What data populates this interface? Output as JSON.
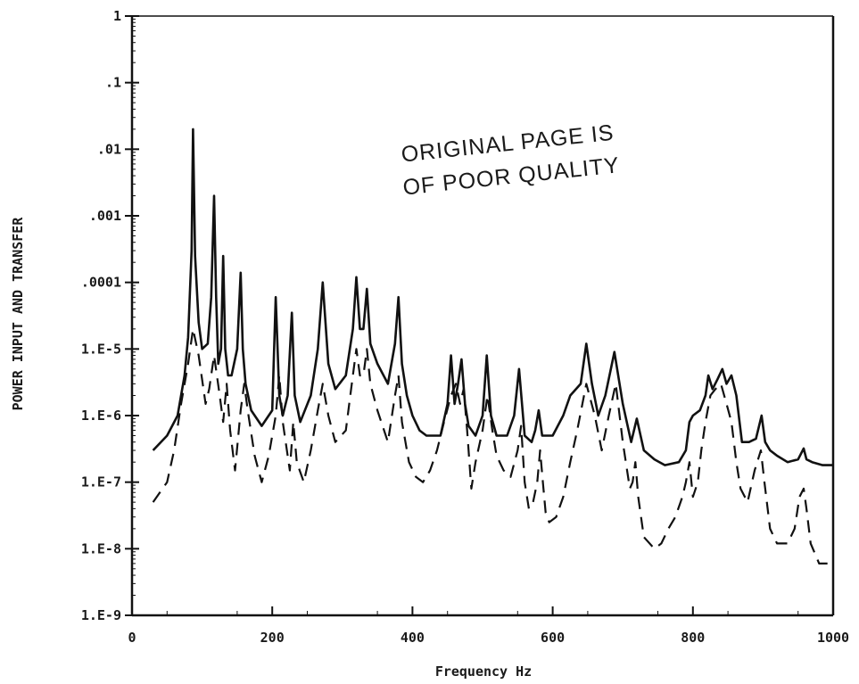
{
  "chart_data": {
    "type": "line",
    "xlabel": "Frequency Hz",
    "ylabel": "POWER INPUT AND TRANSFER",
    "xlim": [
      0,
      1000
    ],
    "ylim": [
      1e-09,
      1
    ],
    "yscale": "log",
    "grid": false,
    "x_ticks": [
      0,
      200,
      400,
      600,
      800,
      1000
    ],
    "x_tick_labels": [
      "0",
      "200",
      "400",
      "600",
      "800",
      "1000"
    ],
    "y_ticks": [
      1,
      0.1,
      0.01,
      0.001,
      0.0001,
      1e-05,
      1e-06,
      1e-07,
      1e-08,
      1e-09
    ],
    "y_tick_labels": [
      "1",
      ".1",
      ".01",
      ".001",
      ".0001",
      "1.E-5",
      "1.E-6",
      "1.E-7",
      "1.E-8",
      "1.E-9"
    ],
    "annotation": [
      "ORIGINAL PAGE IS",
      "OF POOR QUALITY"
    ],
    "series": [
      {
        "style": "solid",
        "color": "#111111",
        "x": [
          30,
          50,
          65,
          75,
          80,
          85,
          87,
          90,
          95,
          100,
          108,
          113,
          117,
          120,
          123,
          127,
          130,
          133,
          137,
          142,
          150,
          155,
          158,
          162,
          170,
          185,
          200,
          205,
          210,
          215,
          222,
          228,
          232,
          240,
          255,
          265,
          272,
          280,
          290,
          305,
          315,
          320,
          325,
          330,
          335,
          340,
          350,
          365,
          375,
          380,
          385,
          392,
          400,
          410,
          420,
          440,
          450,
          455,
          460,
          465,
          470,
          475,
          480,
          490,
          500,
          506,
          512,
          520,
          535,
          545,
          552,
          560,
          570,
          575,
          580,
          585,
          600,
          615,
          625,
          640,
          648,
          656,
          665,
          675,
          688,
          700,
          712,
          720,
          730,
          745,
          760,
          780,
          790,
          795,
          800,
          810,
          818,
          822,
          828,
          835,
          842,
          848,
          855,
          862,
          870,
          880,
          890,
          898,
          903,
          910,
          920,
          935,
          950,
          958,
          962,
          970,
          985,
          1000
        ],
        "y": [
          3e-07,
          5e-07,
          1e-06,
          4e-06,
          1.5e-05,
          0.0003,
          0.02,
          0.00025,
          2.5e-05,
          1e-05,
          1.2e-05,
          6e-05,
          0.002,
          6e-05,
          6e-06,
          1e-05,
          0.00025,
          1e-05,
          4e-06,
          4e-06,
          1e-05,
          0.00014,
          1e-05,
          3e-06,
          1.2e-06,
          7e-07,
          1.2e-06,
          6e-05,
          2e-06,
          1e-06,
          2e-06,
          3.5e-05,
          2e-06,
          8e-07,
          2e-06,
          1e-05,
          0.0001,
          6e-06,
          2.5e-06,
          4e-06,
          2e-05,
          0.00012,
          2e-05,
          2e-05,
          8e-05,
          1.2e-05,
          6e-06,
          3e-06,
          1.2e-05,
          6e-05,
          6e-06,
          2e-06,
          1e-06,
          6e-07,
          5e-07,
          5e-07,
          1.5e-06,
          8e-06,
          1.5e-06,
          3e-06,
          7e-06,
          1.5e-06,
          7e-07,
          5e-07,
          1e-06,
          8e-06,
          1e-06,
          5e-07,
          5e-07,
          1e-06,
          5e-06,
          5e-07,
          4e-07,
          6e-07,
          1.2e-06,
          5e-07,
          5e-07,
          1e-06,
          2e-06,
          3e-06,
          1.2e-05,
          3e-06,
          1e-06,
          2e-06,
          9e-06,
          1.5e-06,
          4e-07,
          9e-07,
          3e-07,
          2.2e-07,
          1.8e-07,
          2e-07,
          3e-07,
          8e-07,
          1e-06,
          1.2e-06,
          2e-06,
          4e-06,
          2.5e-06,
          3.5e-06,
          5e-06,
          3e-06,
          4e-06,
          2e-06,
          4e-07,
          4e-07,
          4.5e-07,
          1e-06,
          4e-07,
          3e-07,
          2.5e-07,
          2e-07,
          2.2e-07,
          3.2e-07,
          2.2e-07,
          2e-07,
          1.8e-07,
          1.8e-07
        ]
      },
      {
        "style": "dashed",
        "color": "#111111",
        "x": [
          30,
          50,
          60,
          70,
          80,
          87,
          95,
          105,
          110,
          117,
          125,
          130,
          135,
          140,
          147,
          155,
          160,
          165,
          175,
          185,
          195,
          205,
          210,
          215,
          225,
          230,
          235,
          245,
          255,
          265,
          272,
          280,
          290,
          305,
          315,
          320,
          325,
          330,
          335,
          340,
          350,
          365,
          375,
          380,
          385,
          395,
          405,
          415,
          425,
          435,
          445,
          455,
          462,
          468,
          473,
          478,
          484,
          490,
          500,
          507,
          514,
          520,
          530,
          540,
          550,
          555,
          560,
          566,
          572,
          578,
          582,
          586,
          590,
          595,
          605,
          615,
          625,
          635,
          648,
          660,
          670,
          680,
          690,
          700,
          710,
          714,
          718,
          722,
          730,
          745,
          755,
          765,
          775,
          785,
          790,
          795,
          800,
          807,
          812,
          818,
          825,
          832,
          840,
          848,
          855,
          862,
          868,
          878,
          888,
          897,
          902,
          910,
          920,
          935,
          945,
          952,
          958,
          962,
          968,
          980,
          990,
          1000
        ],
        "y": [
          5e-08,
          1e-07,
          3e-07,
          1.5e-06,
          6e-06,
          2e-05,
          8e-06,
          1.5e-06,
          2.5e-06,
          8e-06,
          2e-06,
          8e-07,
          3e-06,
          6e-07,
          1.5e-07,
          1.2e-06,
          3e-06,
          1.2e-06,
          2.5e-07,
          1e-07,
          2.5e-07,
          1e-06,
          4e-06,
          8e-07,
          1.5e-07,
          8e-07,
          2e-07,
          1e-07,
          3e-07,
          1.2e-06,
          3e-06,
          1e-06,
          4e-07,
          6e-07,
          4e-06,
          1e-05,
          4e-06,
          4e-06,
          1e-05,
          3e-06,
          1.2e-06,
          4e-07,
          2e-06,
          4e-06,
          8e-07,
          2e-07,
          1.2e-07,
          1e-07,
          1.5e-07,
          3e-07,
          8e-07,
          2e-06,
          3e-06,
          1.5e-06,
          2.5e-06,
          6e-07,
          8e-08,
          2e-07,
          6e-07,
          2e-06,
          6e-07,
          2.5e-07,
          1.5e-07,
          1.2e-07,
          3e-07,
          7e-07,
          1e-07,
          4e-08,
          5e-08,
          1e-07,
          3e-07,
          1e-07,
          3.5e-08,
          2.5e-08,
          3e-08,
          6e-08,
          2e-07,
          6e-07,
          3e-06,
          1e-06,
          3e-07,
          1e-06,
          3e-06,
          4e-07,
          8e-08,
          1e-07,
          2e-07,
          6e-08,
          1.5e-08,
          1e-08,
          1.2e-08,
          2e-08,
          3e-08,
          6e-08,
          1e-07,
          2e-07,
          6e-08,
          1e-07,
          3e-07,
          8e-07,
          2e-06,
          2.5e-06,
          3e-06,
          1.5e-06,
          8e-07,
          2e-07,
          8e-08,
          5e-08,
          1.5e-07,
          3e-07,
          1e-07,
          2e-08,
          1.2e-08,
          1.2e-08,
          2e-08,
          6e-08,
          8e-08,
          4e-08,
          1.2e-08,
          6e-09,
          6e-09,
          6e-09
        ]
      }
    ]
  }
}
